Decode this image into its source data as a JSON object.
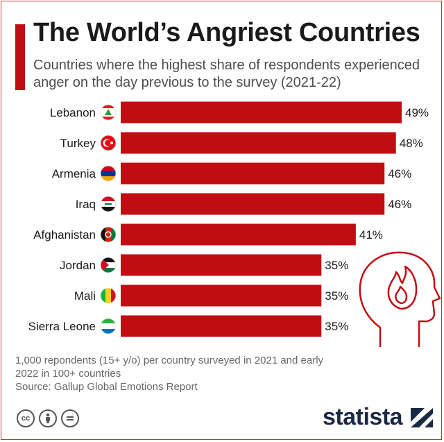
{
  "header": {
    "title": "The World’s Angriest Countries",
    "subtitle": "Countries where the highest share of respondents experienced anger on the day previous to the survey (2021-22)"
  },
  "chart_data": {
    "type": "bar",
    "orientation": "horizontal",
    "title": "The World’s Angriest Countries",
    "categories": [
      "Lebanon",
      "Turkey",
      "Armenia",
      "Iraq",
      "Afghanistan",
      "Jordan",
      "Mali",
      "Sierra Leone"
    ],
    "values": [
      49,
      48,
      46,
      46,
      41,
      35,
      35,
      35
    ],
    "value_labels": [
      "49%",
      "48%",
      "46%",
      "46%",
      "41%",
      "35%",
      "35%",
      "35%"
    ],
    "unit": "%",
    "xlim": [
      0,
      49
    ],
    "grid": false,
    "bar_color": "#c00d13"
  },
  "flags": {
    "Lebanon": "lebanon-flag-icon",
    "Turkey": "turkey-flag-icon",
    "Armenia": "armenia-flag-icon",
    "Iraq": "iraq-flag-icon",
    "Afghanistan": "afghanistan-flag-icon",
    "Jordan": "jordan-flag-icon",
    "Mali": "mali-flag-icon",
    "Sierra Leone": "sierra-leone-flag-icon"
  },
  "footer": {
    "note": "1,000 repondents (15+ y/o) per country surveyed in 2021 and early 2022 in 100+ countries",
    "source": "Source: Gallup Global Emotions Report",
    "brand": "statista",
    "license_icons": [
      "cc-icon",
      "attribution-icon",
      "no-derivatives-icon"
    ]
  },
  "colors": {
    "accent": "#c00d13",
    "text": "#1a1a1a",
    "muted": "#666666",
    "brand": "#1a2a44"
  }
}
